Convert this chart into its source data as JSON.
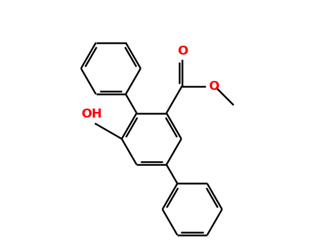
{
  "bg_color": "#ffffff",
  "bond_color": "#000000",
  "O_color": "#ff0000",
  "lw": 1.8,
  "font_size": 13,
  "r": 0.5,
  "xlim": [
    -2.6,
    2.6
  ],
  "ylim": [
    -2.0,
    2.0
  ]
}
